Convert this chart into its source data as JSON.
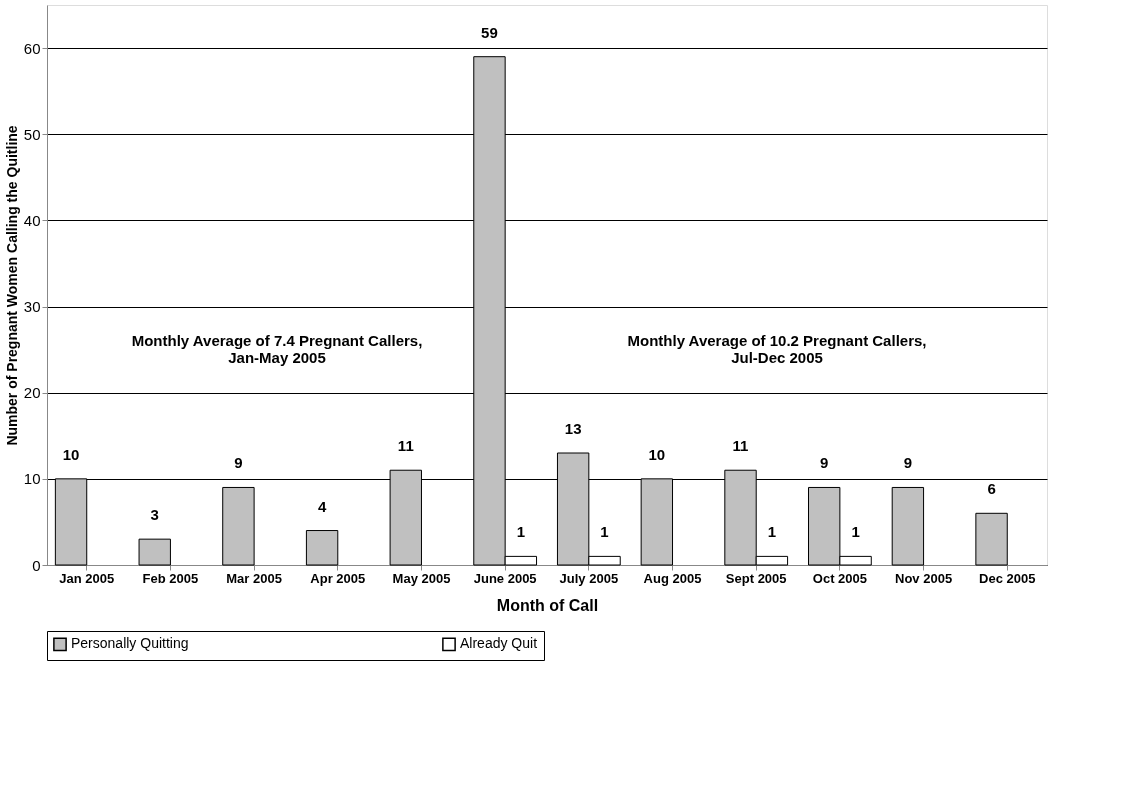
{
  "chart_data": {
    "type": "bar",
    "xlabel": "Month of Call",
    "ylabel": "Number of Pregnant Women Calling the Quitline",
    "categories": [
      "Jan 2005",
      "Feb 2005",
      "Mar 2005",
      "Apr 2005",
      "May 2005",
      "June 2005",
      "July 2005",
      "Aug 2005",
      "Sept 2005",
      "Oct 2005",
      "Nov 2005",
      "Dec 2005"
    ],
    "series": [
      {
        "name": "Personally Quitting",
        "color": "#c0c0c0",
        "values": [
          10,
          3,
          9,
          4,
          11,
          59,
          13,
          10,
          11,
          9,
          9,
          6
        ]
      },
      {
        "name": "Already Quit",
        "color": "#ffffff",
        "values": [
          null,
          null,
          null,
          null,
          null,
          1,
          1,
          null,
          1,
          1,
          null,
          null
        ]
      }
    ],
    "ylim": [
      0,
      65
    ],
    "yticks": [
      0,
      10,
      20,
      30,
      40,
      50,
      60
    ],
    "grid": "y",
    "legend": "bottom",
    "data_labels": true,
    "annotations": [
      "Monthly Average of 7.4 Pregnant Callers,\nJan-May 2005",
      "Monthly Average of 10.2 Pregnant Callers,\nJul-Dec 2005"
    ]
  }
}
